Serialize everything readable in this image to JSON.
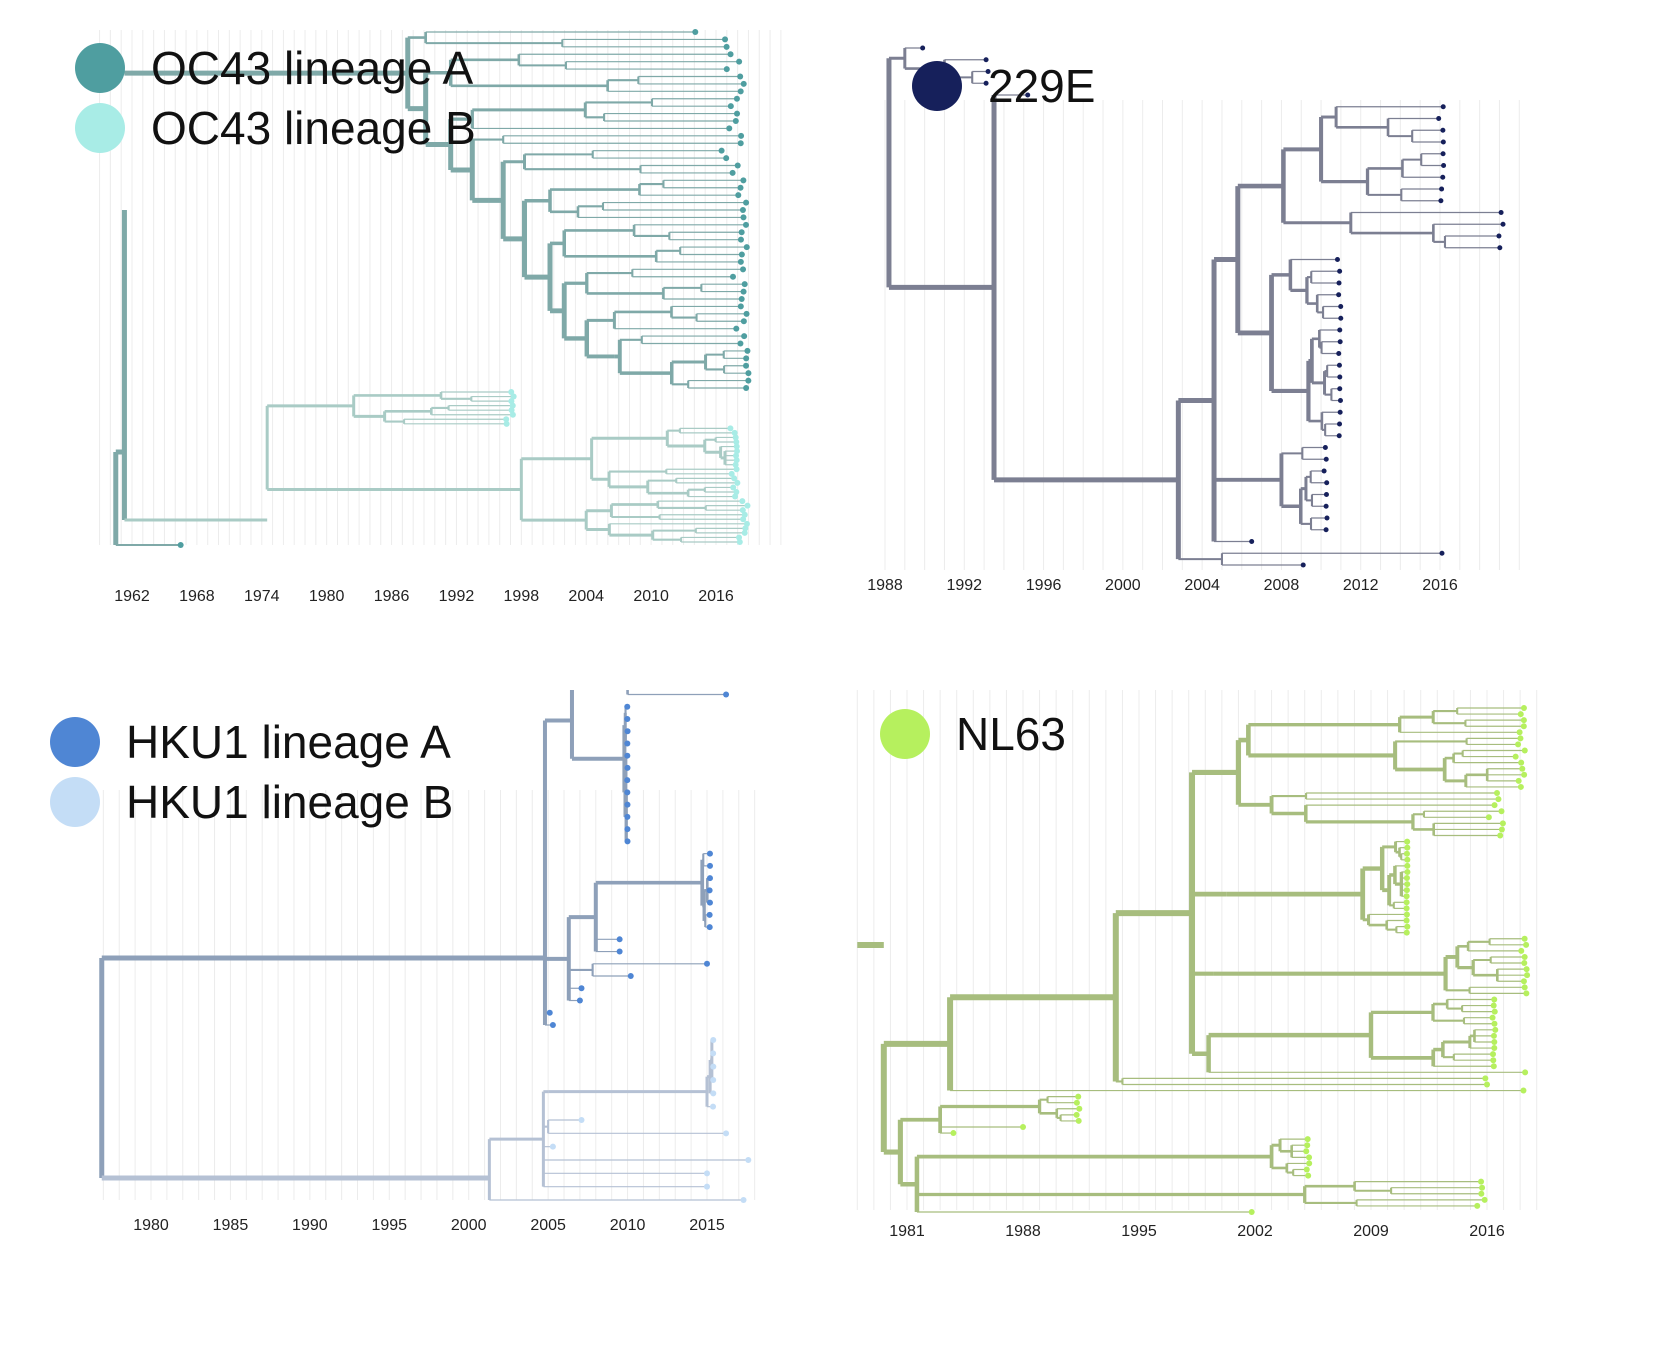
{
  "chart_data": [
    {
      "type": "phylogenetic-tree",
      "id": "oc43",
      "xaxis": {
        "ticks": [
          1962,
          1968,
          1974,
          1980,
          1986,
          1992,
          1998,
          2004,
          2010,
          2016
        ],
        "range": [
          1959,
          2022
        ]
      },
      "legend": [
        {
          "label": "OC43 lineage A",
          "color": "#4f9ea0"
        },
        {
          "label": "OC43 lineage B",
          "color": "#a8ece6"
        }
      ],
      "branch_colors": {
        "A": "#7fa9a8",
        "B": "#a9cbc5"
      }
    },
    {
      "type": "phylogenetic-tree",
      "id": "229e",
      "xaxis": {
        "ticks": [
          1988,
          1992,
          1996,
          2000,
          2004,
          2008,
          2012,
          2016
        ],
        "range": [
          1987.5,
          2020.5
        ]
      },
      "legend": [
        {
          "label": "229E",
          "color": "#16205b"
        }
      ],
      "branch_colors": {
        "A": "#7c7f92"
      }
    },
    {
      "type": "phylogenetic-tree",
      "id": "hku1",
      "xaxis": {
        "ticks": [
          1980,
          1985,
          1990,
          1995,
          2000,
          2005,
          2010,
          2015
        ],
        "range": [
          1976.5,
          2018.5
        ]
      },
      "legend": [
        {
          "label": "HKU1 lineage A",
          "color": "#4f86d4"
        },
        {
          "label": "HKU1 lineage B",
          "color": "#c4ddf6"
        }
      ],
      "branch_colors": {
        "A": "#8ea0b9",
        "B": "#b5c1d4"
      }
    },
    {
      "type": "phylogenetic-tree",
      "id": "nl63",
      "xaxis": {
        "ticks": [
          1981,
          1988,
          1995,
          2002,
          2009,
          2016
        ],
        "range": [
          1978,
          2019
        ]
      },
      "legend": [
        {
          "label": "NL63",
          "color": "#b6f05e"
        }
      ],
      "branch_colors": {
        "A": "#a7bd7e"
      }
    }
  ]
}
